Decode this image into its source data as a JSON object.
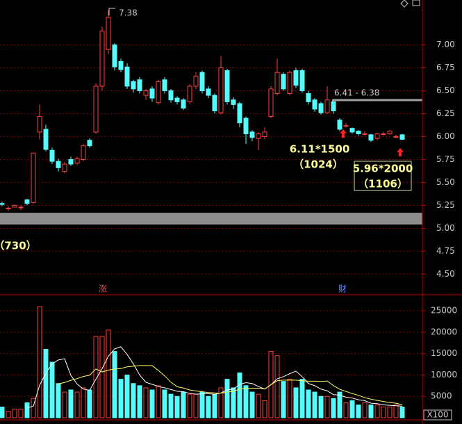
{
  "chart_data": [
    {
      "type": "candlestick",
      "up_color": "#ff3c3c",
      "down_color": "#54fcfc",
      "open": [
        5.27,
        5.22,
        5.23,
        5.23,
        5.31,
        5.28,
        6.05,
        6.08,
        5.85,
        5.73,
        5.62,
        5.75,
        5.71,
        5.75,
        5.96,
        6.05,
        6.55,
        6.95,
        7.0,
        6.82,
        6.76,
        6.6,
        6.62,
        6.45,
        6.52,
        6.37,
        6.62,
        6.5,
        6.42,
        6.4,
        6.38,
        6.55,
        6.7,
        6.52,
        6.45,
        6.26,
        6.72,
        6.4,
        6.36,
        6.2,
        6.05,
        5.98,
        6.0,
        6.22,
        6.47,
        6.68,
        6.47,
        6.72,
        6.72,
        6.47,
        6.4,
        6.36,
        6.26,
        6.38,
        6.18,
        6.12,
        6.09,
        6.06,
        6.03,
        6.02,
        5.98,
        6.03,
        6.03,
        6.0,
        6.02
      ],
      "high": [
        5.29,
        5.24,
        5.26,
        5.25,
        5.32,
        5.82,
        6.35,
        6.13,
        5.88,
        5.76,
        5.72,
        5.78,
        5.78,
        5.92,
        5.98,
        6.58,
        7.2,
        7.38,
        7.02,
        6.85,
        6.8,
        6.62,
        6.65,
        6.52,
        6.55,
        6.62,
        6.65,
        6.52,
        6.44,
        6.42,
        6.57,
        6.7,
        6.72,
        6.55,
        6.47,
        6.88,
        6.74,
        6.43,
        6.38,
        6.22,
        6.07,
        6.05,
        6.1,
        6.55,
        6.85,
        6.7,
        6.72,
        6.75,
        6.74,
        6.5,
        6.42,
        6.38,
        6.55,
        6.4,
        6.2,
        6.15,
        6.1,
        6.07,
        6.06,
        6.03,
        6.04,
        6.05,
        6.07,
        6.02,
        6.03
      ],
      "low": [
        5.24,
        5.19,
        5.23,
        5.2,
        5.25,
        5.27,
        5.97,
        5.84,
        5.7,
        5.62,
        5.6,
        5.68,
        5.69,
        5.73,
        5.88,
        6.03,
        6.5,
        6.9,
        6.72,
        6.7,
        6.52,
        6.48,
        6.47,
        6.4,
        6.38,
        6.35,
        6.47,
        6.37,
        6.35,
        6.29,
        6.36,
        6.52,
        6.47,
        6.42,
        6.25,
        6.24,
        6.35,
        6.3,
        6.1,
        5.92,
        5.95,
        5.85,
        5.97,
        6.2,
        6.45,
        6.5,
        6.45,
        6.53,
        6.48,
        6.35,
        6.27,
        6.24,
        6.25,
        6.25,
        6.06,
        6.1,
        6.03,
        6.01,
        6.01,
        5.94,
        5.96,
        6.01,
        6.02,
        5.98,
        5.96
      ],
      "close": [
        5.26,
        5.22,
        5.25,
        5.23,
        5.27,
        5.82,
        6.22,
        5.86,
        5.73,
        5.66,
        5.7,
        5.7,
        5.76,
        5.9,
        5.9,
        6.55,
        7.15,
        7.3,
        6.76,
        6.73,
        6.55,
        6.52,
        6.5,
        6.5,
        6.42,
        6.6,
        6.5,
        6.4,
        6.38,
        6.31,
        6.55,
        6.66,
        6.5,
        6.45,
        6.28,
        6.75,
        6.38,
        6.35,
        6.15,
        6.03,
        5.99,
        6.03,
        6.05,
        6.52,
        6.7,
        6.52,
        6.7,
        6.56,
        6.5,
        6.38,
        6.3,
        6.26,
        6.4,
        6.28,
        6.08,
        6.12,
        6.05,
        6.03,
        6.03,
        5.96,
        6.03,
        6.03,
        6.06,
        6.0,
        5.97
      ],
      "ylim": [
        4.29,
        7.49
      ],
      "yticks": [
        {
          "value": 7,
          "label": "7.00"
        },
        {
          "value": 6.75,
          "label": "6.75"
        },
        {
          "value": 6.5,
          "label": "6.50"
        },
        {
          "value": 6.25,
          "label": "6.25"
        },
        {
          "value": 6,
          "label": "6.00"
        },
        {
          "value": 5.75,
          "label": "5.75"
        },
        {
          "value": 5.5,
          "label": "5.50"
        },
        {
          "value": 5.25,
          "label": "5.25"
        },
        {
          "value": 5,
          "label": "5.00"
        },
        {
          "value": 4.75,
          "label": "4.75"
        },
        {
          "value": 4.5,
          "label": "4.50"
        }
      ],
      "grid": true,
      "annotations": [
        "7.38",
        "6.41 - 6.38",
        "6.11*1500",
        "（1024）",
        "5.96*2000",
        "（1106）",
        "（730）",
        "涨",
        "财"
      ]
    },
    {
      "type": "bar",
      "values": [
        2500,
        1500,
        2000,
        2000,
        3500,
        4500,
        26000,
        16000,
        13000,
        8000,
        6000,
        6500,
        6000,
        7000,
        6500,
        19000,
        19000,
        20500,
        15500,
        9000,
        10000,
        8000,
        7500,
        7000,
        6500,
        7500,
        6500,
        5500,
        5000,
        6000,
        5500,
        5500,
        6000,
        5000,
        5500,
        7000,
        9000,
        7000,
        10500,
        7500,
        6000,
        5500,
        4000,
        15500,
        14500,
        8500,
        9000,
        7000,
        9000,
        6500,
        6000,
        5000,
        5000,
        4500,
        6000,
        3500,
        4000,
        3000,
        3500,
        3000,
        3000,
        2500,
        2500,
        3000,
        2500
      ],
      "ma5": [
        null,
        null,
        null,
        null,
        2300,
        2700,
        7600,
        10400,
        12600,
        13500,
        13800,
        9900,
        7900,
        6700,
        6400,
        9000,
        11500,
        14400,
        16100,
        16600,
        14800,
        12600,
        10000,
        8300,
        7800,
        7300,
        7000,
        6600,
        6200,
        6100,
        5700,
        5500,
        5600,
        5600,
        5500,
        5800,
        6500,
        6700,
        7800,
        8200,
        8000,
        7300,
        6700,
        7700,
        9100,
        9600,
        10300,
        10900,
        9600,
        8000,
        7500,
        6700,
        6300,
        5400,
        5300,
        4800,
        4600,
        4200,
        4000,
        3400,
        3300,
        3000,
        2900,
        2800,
        2700
      ],
      "ma10": [
        null,
        null,
        null,
        null,
        null,
        null,
        null,
        null,
        null,
        7900,
        8250,
        8750,
        9150,
        9650,
        9950,
        11400,
        10700,
        11150,
        11400,
        11500,
        11900,
        12050,
        12200,
        12200,
        12200,
        11050,
        9800,
        8300,
        7250,
        6950,
        6500,
        6250,
        6100,
        5900,
        5800,
        5750,
        6000,
        6150,
        6700,
        6850,
        6900,
        6900,
        6700,
        7750,
        8650,
        8800,
        8800,
        8800,
        8650,
        8550,
        8550,
        8500,
        8600,
        7500,
        6650,
        6150,
        5650,
        5250,
        4700,
        4350,
        4050,
        3800,
        3550,
        3400,
        3050
      ],
      "ma5_color": "#ffffff",
      "ma10_color": "#ffff60",
      "ylim": [
        0,
        28600
      ],
      "yticks": [
        25000,
        20000,
        15000,
        10000,
        5000
      ],
      "grid": true,
      "unit_label": "X100"
    }
  ]
}
